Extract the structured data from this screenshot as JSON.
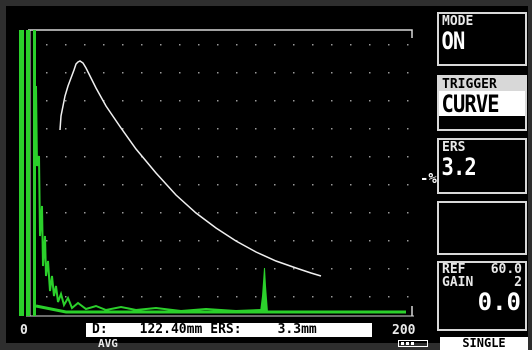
{
  "colors": {
    "background": "#000000",
    "signal": "#2bd02b",
    "curve": "#ffffff",
    "frame": "#d8d8d8"
  },
  "sidebar": {
    "mode": {
      "label": "MODE",
      "value": "ON"
    },
    "trigger": {
      "label": "TRIGGER",
      "value": "CURVE"
    },
    "ers": {
      "label": "ERS",
      "value": "3.2"
    },
    "blank": {
      "label": "",
      "value": ""
    },
    "ref": {
      "ref_label": "REF",
      "ref_value": "60.0",
      "gain_label": "GAIN",
      "gain_value": "2",
      "value": "0.0"
    },
    "percent_marker": "-%"
  },
  "axis": {
    "min_label": "0",
    "max_label": "200"
  },
  "readout": {
    "d_label": "D:",
    "d_value": "122.40mm",
    "ers_label": "ERS:",
    "ers_value": "3.3mm"
  },
  "status": {
    "avg": "AVG",
    "battery_icon": "battery-icon",
    "single": "SINGLE"
  }
}
